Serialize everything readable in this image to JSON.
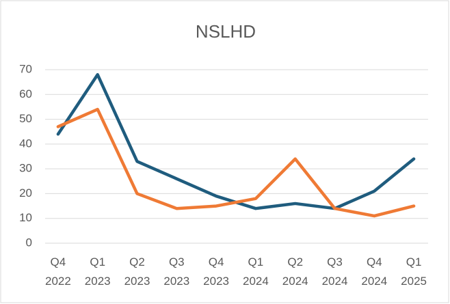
{
  "chart_data": {
    "type": "line",
    "title": "NSLHD",
    "categories": [
      "Q4 2022",
      "Q1 2023",
      "Q2 2023",
      "Q3 2023",
      "Q4 2023",
      "Q1 2024",
      "Q2 2024",
      "Q3 2024",
      "Q4 2024",
      "Q1 2025"
    ],
    "series": [
      {
        "color": "#1f5c7e",
        "values": [
          44,
          68,
          33,
          26,
          19,
          14,
          16,
          14,
          21,
          34
        ]
      },
      {
        "color": "#ef7a35",
        "values": [
          47,
          54,
          20,
          14,
          15,
          18,
          34,
          14,
          11,
          15
        ]
      }
    ],
    "ylim": [
      0,
      70
    ],
    "yticks": [
      0,
      10,
      20,
      30,
      40,
      50,
      60,
      70
    ],
    "grid": true
  }
}
